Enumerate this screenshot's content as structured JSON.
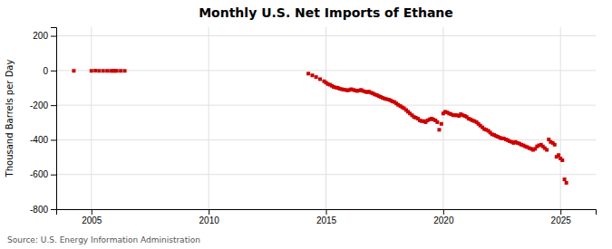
{
  "chart_data": {
    "type": "scatter",
    "title": "Monthly U.S. Net Imports of Ethane",
    "ylabel": "Thousand Barrels per Day",
    "source": "Source: U.S. Energy Information Administration",
    "color": "#cc0000",
    "marker": "square",
    "grid": true,
    "xlim": [
      2003.5,
      2026.5
    ],
    "ylim": [
      -800,
      250
    ],
    "xticks": [
      2005,
      2010,
      2015,
      2020,
      2025
    ],
    "yticks": [
      -800,
      -600,
      -400,
      -200,
      0,
      200
    ],
    "x": [
      2004.25,
      2005.0,
      2005.17,
      2005.33,
      2005.5,
      2005.67,
      2005.83,
      2005.92,
      2006.0,
      2006.08,
      2006.25,
      2006.42,
      2014.25,
      2014.42,
      2014.58,
      2014.75,
      2014.92,
      2015.0,
      2015.08,
      2015.17,
      2015.25,
      2015.33,
      2015.42,
      2015.5,
      2015.58,
      2015.67,
      2015.75,
      2015.83,
      2015.92,
      2016.0,
      2016.08,
      2016.17,
      2016.25,
      2016.33,
      2016.42,
      2016.5,
      2016.58,
      2016.67,
      2016.75,
      2016.83,
      2016.92,
      2017.0,
      2017.08,
      2017.17,
      2017.25,
      2017.33,
      2017.42,
      2017.5,
      2017.58,
      2017.67,
      2017.75,
      2017.83,
      2017.92,
      2018.0,
      2018.08,
      2018.17,
      2018.25,
      2018.33,
      2018.42,
      2018.5,
      2018.58,
      2018.67,
      2018.75,
      2018.83,
      2018.92,
      2019.0,
      2019.08,
      2019.17,
      2019.25,
      2019.33,
      2019.42,
      2019.5,
      2019.58,
      2019.67,
      2019.75,
      2019.83,
      2019.92,
      2020.0,
      2020.08,
      2020.17,
      2020.25,
      2020.33,
      2020.42,
      2020.5,
      2020.58,
      2020.67,
      2020.75,
      2020.83,
      2020.92,
      2021.0,
      2021.08,
      2021.17,
      2021.25,
      2021.33,
      2021.42,
      2021.5,
      2021.58,
      2021.67,
      2021.75,
      2021.83,
      2021.92,
      2022.0,
      2022.08,
      2022.17,
      2022.25,
      2022.33,
      2022.42,
      2022.5,
      2022.58,
      2022.67,
      2022.75,
      2022.83,
      2022.92,
      2023.0,
      2023.08,
      2023.17,
      2023.25,
      2023.33,
      2023.42,
      2023.5,
      2023.58,
      2023.67,
      2023.75,
      2023.83,
      2023.92,
      2024.0,
      2024.08,
      2024.17,
      2024.25,
      2024.33,
      2024.42,
      2024.5,
      2024.58,
      2024.67,
      2024.75,
      2024.83,
      2024.92,
      2025.0,
      2025.08,
      2025.17,
      2025.25
    ],
    "values": [
      -2,
      -2,
      -1,
      -2,
      -2,
      -2,
      -2,
      -2,
      -2,
      -2,
      -2,
      -2,
      -18,
      -28,
      -38,
      -50,
      -62,
      -70,
      -78,
      -82,
      -88,
      -95,
      -98,
      -100,
      -105,
      -108,
      -110,
      -112,
      -115,
      -112,
      -108,
      -112,
      -115,
      -118,
      -115,
      -112,
      -118,
      -122,
      -125,
      -122,
      -128,
      -132,
      -138,
      -142,
      -148,
      -152,
      -158,
      -162,
      -165,
      -168,
      -172,
      -178,
      -182,
      -190,
      -198,
      -205,
      -212,
      -218,
      -228,
      -238,
      -248,
      -258,
      -268,
      -272,
      -278,
      -288,
      -292,
      -292,
      -298,
      -288,
      -282,
      -278,
      -282,
      -288,
      -298,
      -342,
      -308,
      -248,
      -238,
      -242,
      -248,
      -252,
      -258,
      -258,
      -258,
      -262,
      -252,
      -258,
      -262,
      -268,
      -278,
      -282,
      -288,
      -292,
      -298,
      -308,
      -318,
      -328,
      -338,
      -342,
      -348,
      -358,
      -368,
      -372,
      -378,
      -382,
      -388,
      -392,
      -392,
      -398,
      -402,
      -408,
      -412,
      -418,
      -412,
      -418,
      -422,
      -428,
      -432,
      -438,
      -442,
      -448,
      -452,
      -458,
      -452,
      -438,
      -432,
      -428,
      -438,
      -448,
      -458,
      -398,
      -412,
      -418,
      -428,
      -498,
      -488,
      -508,
      -518,
      -628,
      -648
    ]
  }
}
